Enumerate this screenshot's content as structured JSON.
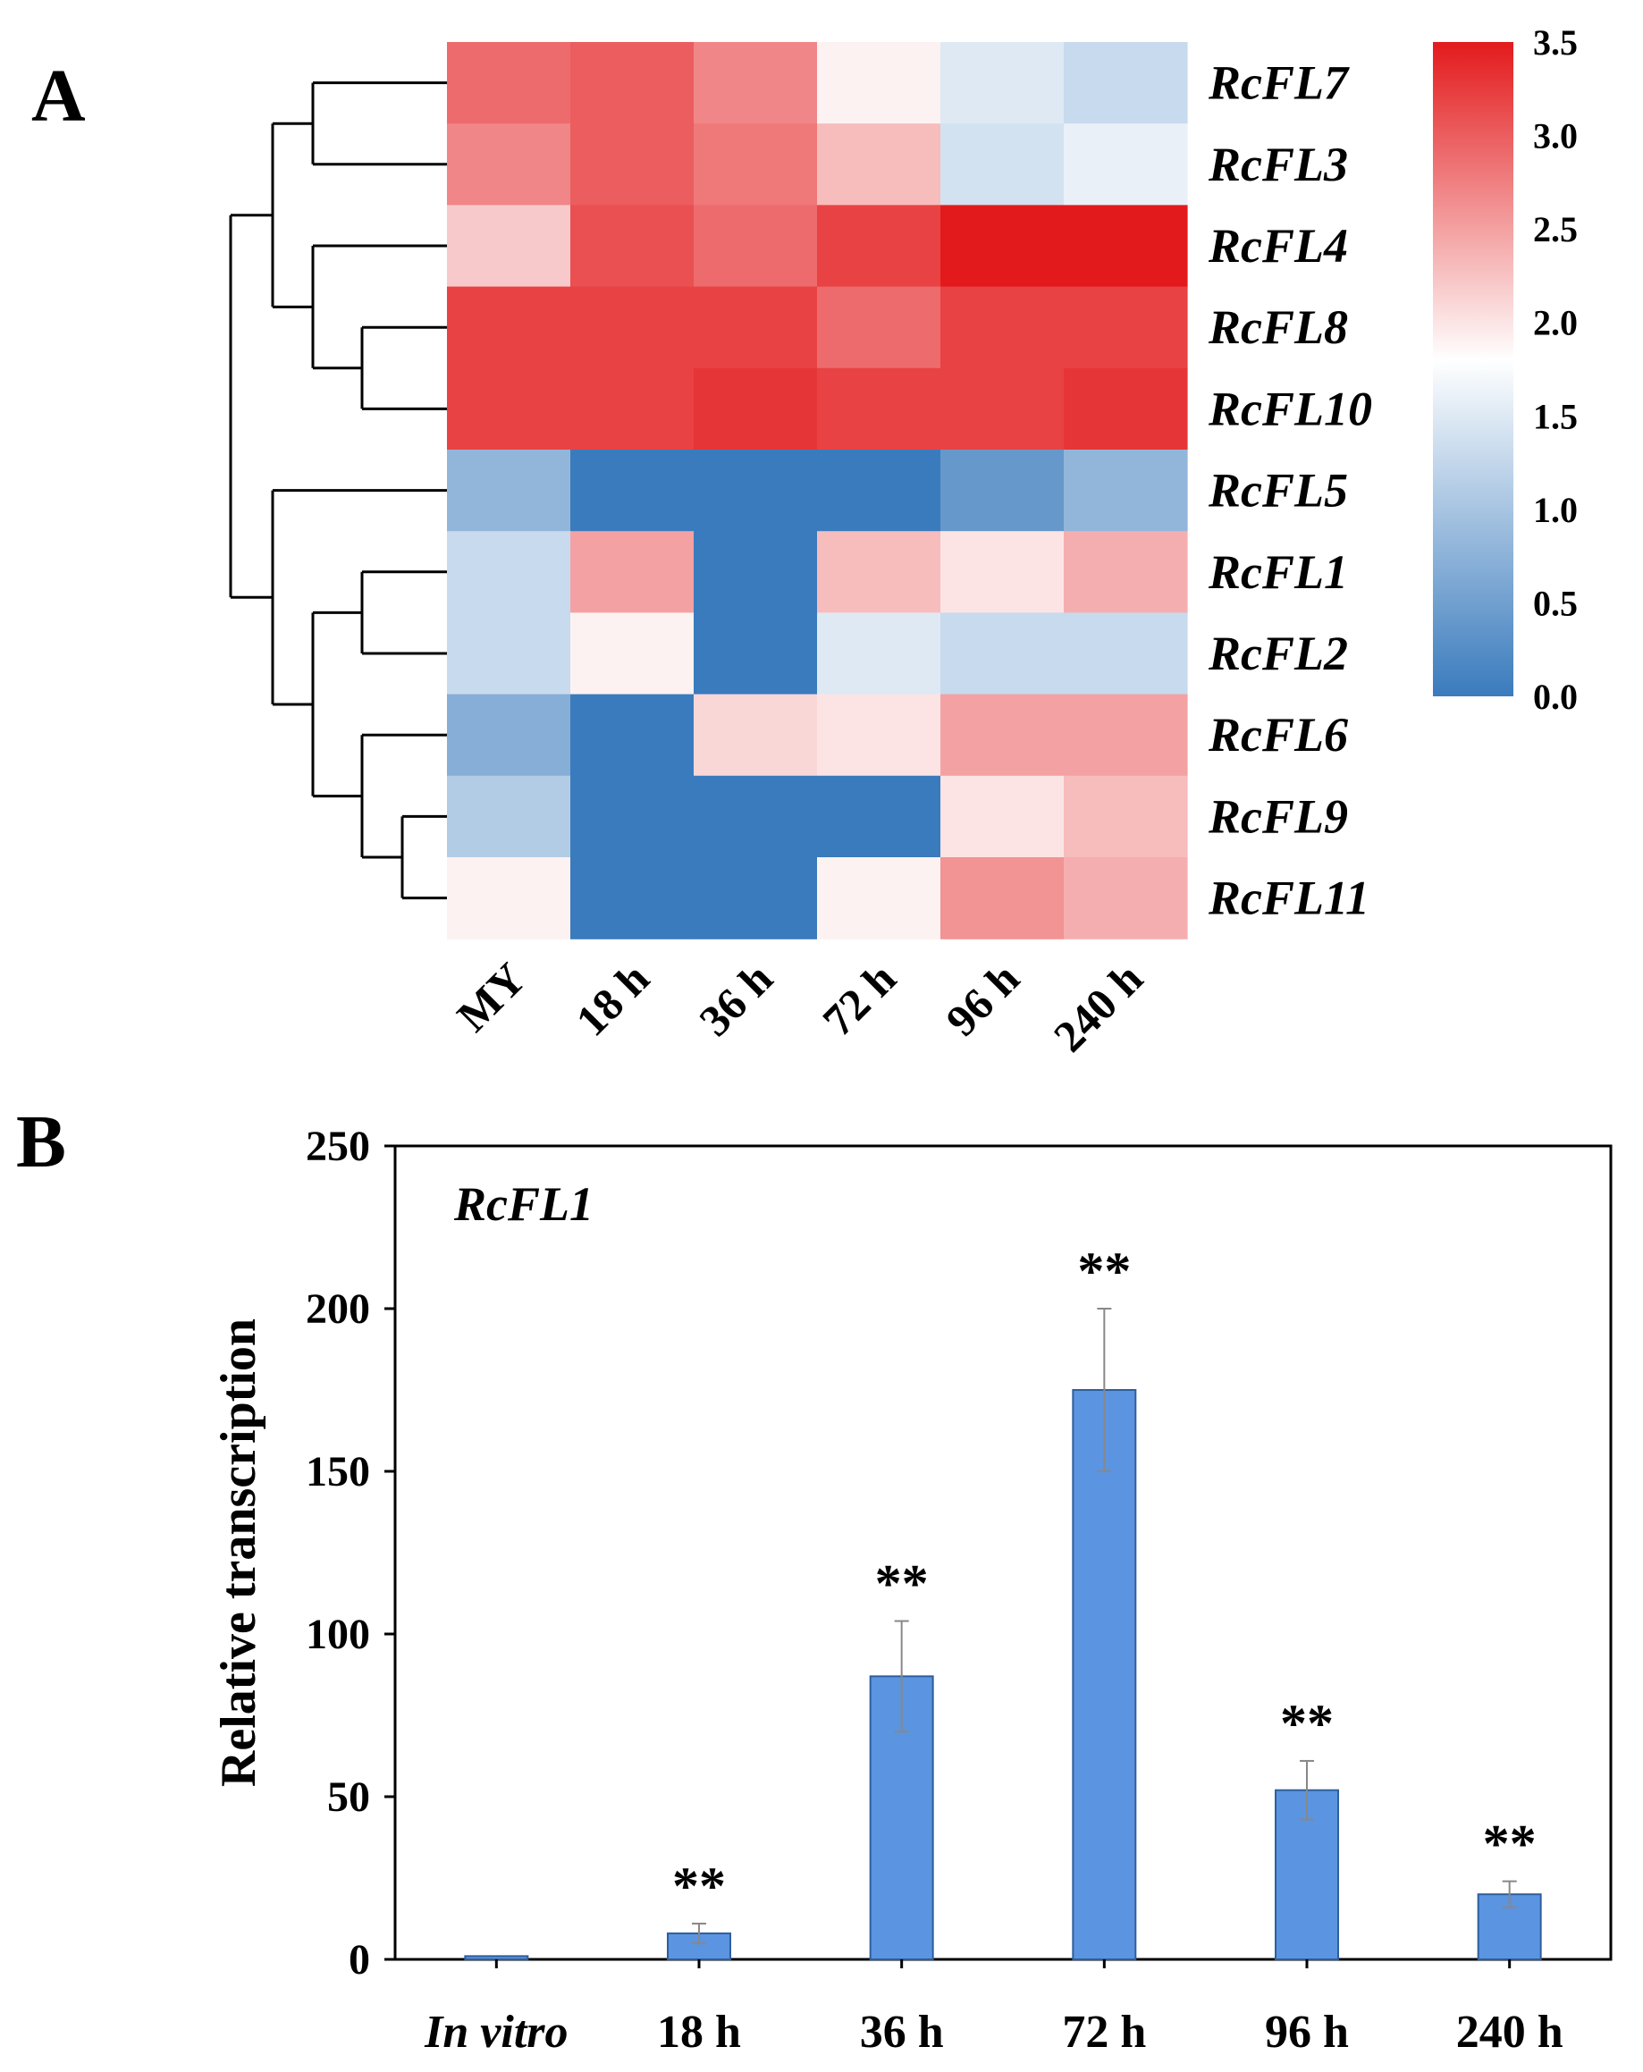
{
  "panel_a": {
    "label": "A",
    "chart_data": {
      "type": "heatmap",
      "columns": [
        "MY",
        "18 h",
        "36 h",
        "72 h",
        "96 h",
        "240 h"
      ],
      "rows": [
        "RcFL7",
        "RcFL3",
        "RcFL4",
        "RcFL8",
        "RcFL10",
        "RcFL5",
        "RcFL1",
        "RcFL2",
        "RcFL6",
        "RcFL9",
        "RcFL11"
      ],
      "values": [
        [
          2.9,
          3.0,
          2.7,
          1.9,
          1.5,
          1.3
        ],
        [
          2.7,
          3.0,
          2.8,
          2.3,
          1.4,
          1.6
        ],
        [
          2.2,
          3.1,
          2.9,
          3.2,
          3.5,
          3.5
        ],
        [
          3.2,
          3.2,
          3.2,
          2.9,
          3.2,
          3.2
        ],
        [
          3.2,
          3.2,
          3.3,
          3.2,
          3.2,
          3.3
        ],
        [
          0.8,
          0.0,
          0.0,
          0.0,
          0.4,
          0.8
        ],
        [
          1.3,
          2.5,
          0.0,
          2.3,
          2.0,
          2.4
        ],
        [
          1.3,
          1.9,
          0.0,
          1.5,
          1.3,
          1.3
        ],
        [
          0.7,
          0.0,
          2.1,
          2.0,
          2.5,
          2.5
        ],
        [
          1.1,
          0.0,
          0.0,
          0.0,
          2.0,
          2.3
        ],
        [
          1.9,
          0.0,
          0.0,
          1.9,
          2.6,
          2.4
        ]
      ],
      "colorbar": {
        "min": 0.0,
        "max": 3.5,
        "ticks": [
          "0.0",
          "0.5",
          "1.0",
          "1.5",
          "2.0",
          "2.5",
          "3.0",
          "3.5"
        ],
        "low_color": "#3a7bbd",
        "mid_color": "#ffffff",
        "mid_value": 1.8,
        "high_color": "#e31a1c"
      },
      "dendrogram": "row"
    }
  },
  "panel_b": {
    "label": "B",
    "chart_data": {
      "type": "bar",
      "title": "RcFL1",
      "categories": [
        "In vitro",
        "18 h",
        "36 h",
        "72 h",
        "96 h",
        "240 h"
      ],
      "values": [
        1,
        8,
        87,
        175,
        52,
        20
      ],
      "errors": [
        0,
        3,
        17,
        25,
        9,
        4
      ],
      "significance": [
        "",
        "**",
        "**",
        "**",
        "**",
        "**"
      ],
      "ylabel": "Relative transcription",
      "ylim": [
        0,
        250
      ],
      "yticks": [
        "0",
        "50",
        "100",
        "150",
        "200",
        "250"
      ],
      "bar_color": "#5b94e0",
      "grid": false
    }
  }
}
